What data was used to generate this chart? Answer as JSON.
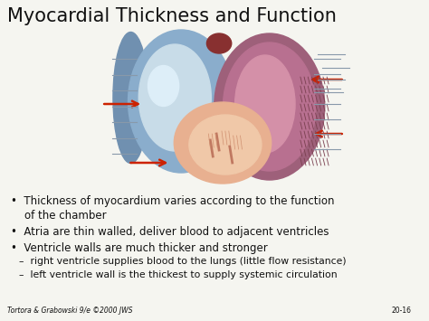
{
  "title": "Myocardial Thickness and Function",
  "title_fontsize": 15,
  "bg_color": "#f5f5f0",
  "bullet_color": "#111111",
  "bullet_fontsize": 8.5,
  "sub_bullet_fontsize": 7.8,
  "bullets": [
    "Thickness of myocardium varies according to the function\n  of the chamber",
    "Atria are thin walled, deliver blood to adjacent ventricles",
    "Ventricle walls are much thicker and stronger"
  ],
  "sub_bullets": [
    "–  right ventricle supplies blood to the lungs (little flow resistance)",
    "–  left ventricle wall is the thickest to supply systemic circulation"
  ],
  "footer_left": "Tortora & Grabowski 9/e ©2000 JWS",
  "footer_right": "20-16",
  "footer_fontsize": 5.5,
  "arrow_color": "#cc2200",
  "line_color": "#8899aa"
}
